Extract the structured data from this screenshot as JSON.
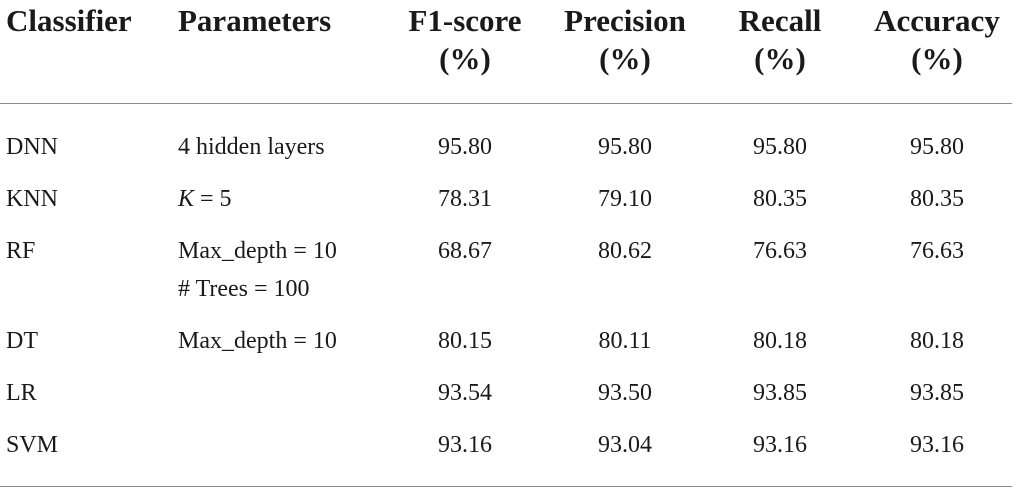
{
  "table": {
    "headers": {
      "classifier": "Classifier",
      "parameters": "Parameters",
      "f1": {
        "line1": "F1-score",
        "line2": "(%)"
      },
      "precision": {
        "line1": "Precision",
        "line2": "(%)"
      },
      "recall": {
        "line1": "Recall",
        "line2": "(%)"
      },
      "accuracy": {
        "line1": "Accuracy",
        "line2": "(%)"
      }
    },
    "rows": [
      {
        "classifier": "DNN",
        "param1": "4 hidden layers",
        "param2": "",
        "f1": "95.80",
        "precision": "95.80",
        "recall": "95.80",
        "accuracy": "95.80"
      },
      {
        "classifier": "KNN",
        "param_k_var": "K",
        "param_k_rest": " = 5",
        "f1": "78.31",
        "precision": "79.10",
        "recall": "80.35",
        "accuracy": "80.35"
      },
      {
        "classifier": "RF",
        "param1": "Max_depth = 10",
        "param2": "# Trees = 100",
        "f1": "68.67",
        "precision": "80.62",
        "recall": "76.63",
        "accuracy": "76.63"
      },
      {
        "classifier": "DT",
        "param1": "Max_depth = 10",
        "param2": "",
        "f1": "80.15",
        "precision": "80.11",
        "recall": "80.18",
        "accuracy": "80.18"
      },
      {
        "classifier": "LR",
        "param1": "",
        "param2": "",
        "f1": "93.54",
        "precision": "93.50",
        "recall": "93.85",
        "accuracy": "93.85"
      },
      {
        "classifier": "SVM",
        "param1": "",
        "param2": "",
        "f1": "93.16",
        "precision": "93.04",
        "recall": "93.16",
        "accuracy": "93.16"
      }
    ]
  }
}
